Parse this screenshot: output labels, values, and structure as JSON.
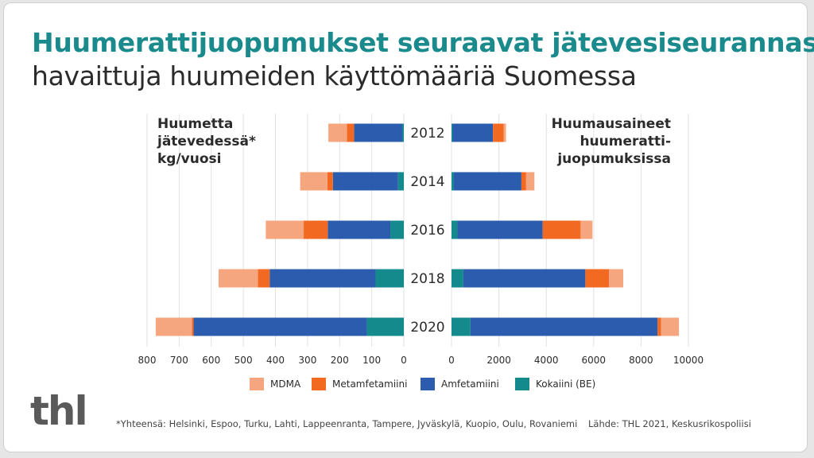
{
  "title": "Huumerattijuopumukset seuraavat jätevesiseurannassa",
  "subtitle": "havaittuja huumeiden käyttömääriä Suomessa",
  "left_label": [
    "Huumetta",
    "jätevedessä*",
    "kg/vuosi"
  ],
  "right_label": [
    "Huumausaineet",
    "huumeratti-",
    "juopumuksissa"
  ],
  "legend": [
    {
      "name": "MDMA",
      "color": "#f5a67e"
    },
    {
      "name": "Metamfetamiini",
      "color": "#f26a22"
    },
    {
      "name": "Amfetamiini",
      "color": "#2b5cae"
    },
    {
      "name": "Kokaiini (BE)",
      "color": "#148a8c"
    }
  ],
  "footnote": "*Yhteensä: Helsinki, Espoo, Turku, Lahti, Lappeenranta, Tampere, Jyväskylä, Kuopio, Oulu, Rovaniemi",
  "source": "Lähde: THL 2021, Keskusrikospoliisi",
  "logo": "thl",
  "chart_data": [
    {
      "type": "bar",
      "orientation": "horizontal",
      "stacked": true,
      "direction": "right-to-left",
      "categories": [
        "2012",
        "2014",
        "2016",
        "2018",
        "2020"
      ],
      "series": [
        {
          "name": "Kokaiini (BE)",
          "values": [
            5,
            18,
            42,
            88,
            115
          ]
        },
        {
          "name": "Amfetamiini",
          "values": [
            150,
            203,
            195,
            330,
            540
          ]
        },
        {
          "name": "Metamfetamiini",
          "values": [
            22,
            17,
            75,
            37,
            5
          ]
        },
        {
          "name": "MDMA",
          "values": [
            58,
            85,
            118,
            122,
            113
          ]
        }
      ],
      "xlim": [
        800,
        0
      ],
      "xticks": [
        "800",
        "700",
        "600",
        "500",
        "400",
        "300",
        "200",
        "100",
        "0"
      ]
    },
    {
      "type": "bar",
      "orientation": "horizontal",
      "stacked": true,
      "categories": [
        "2012",
        "2014",
        "2016",
        "2018",
        "2020"
      ],
      "series": [
        {
          "name": "Kokaiini (BE)",
          "values": [
            50,
            100,
            250,
            500,
            800
          ]
        },
        {
          "name": "Amfetamiini",
          "values": [
            1700,
            2850,
            3600,
            5150,
            7900
          ]
        },
        {
          "name": "Metamfetamiini",
          "values": [
            450,
            200,
            1600,
            1000,
            150
          ]
        },
        {
          "name": "MDMA",
          "values": [
            100,
            350,
            500,
            600,
            750
          ]
        }
      ],
      "xlim": [
        0,
        10000
      ],
      "xticks": [
        "0",
        "2000",
        "4000",
        "6000",
        "8000",
        "10000"
      ]
    }
  ]
}
